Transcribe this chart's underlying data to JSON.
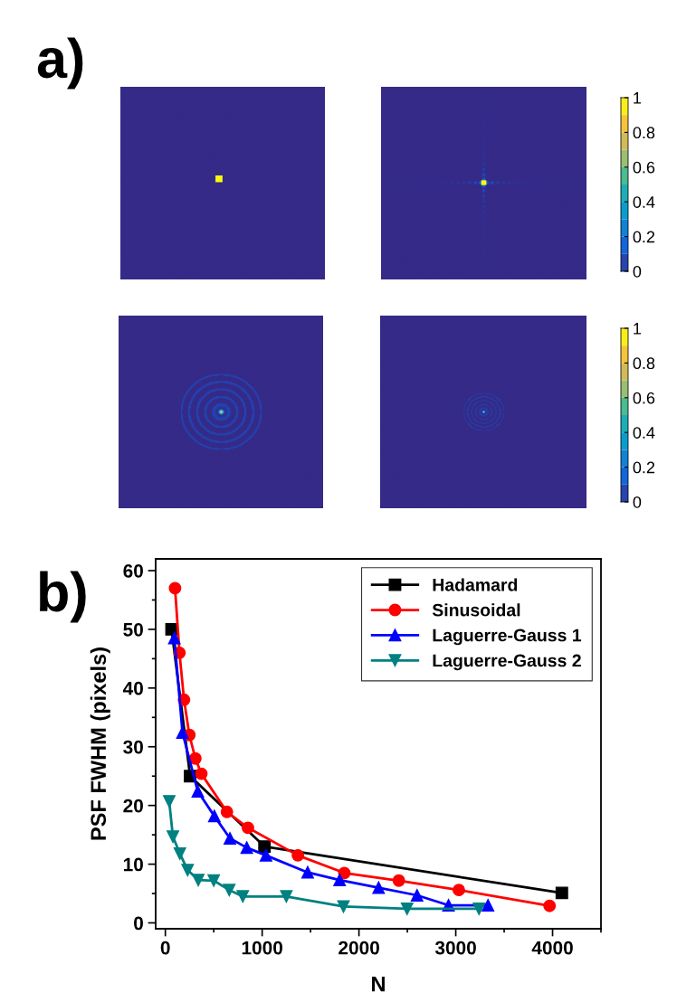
{
  "chart_data": [
    {
      "type": "bar",
      "stacked": true,
      "annotations": [
        "a)"
      ],
      "categories": [
        null
      ],
      "ylim": [
        0,
        1
      ],
      "yticks": [
        0,
        0.2,
        0.4,
        0.6,
        0.8,
        1
      ],
      "series": [
        {
          "color": "#2744af",
          "values": [
            0.1
          ]
        },
        {
          "color": "#1166d9",
          "values": [
            0.1
          ]
        },
        {
          "color": "#1282d5",
          "values": [
            0.1
          ]
        },
        {
          "color": "#0a9ccd",
          "values": [
            0.1
          ]
        },
        {
          "color": "#1caeb6",
          "values": [
            0.1
          ]
        },
        {
          "color": "#4bbb92",
          "values": [
            0.1
          ]
        },
        {
          "color": "#98bf72",
          "values": [
            0.1
          ]
        },
        {
          "color": "#d1bb59",
          "values": [
            0.1
          ]
        },
        {
          "color": "#f5c43b",
          "values": [
            0.1
          ]
        },
        {
          "color": "#f9ee18",
          "values": [
            0.1
          ]
        }
      ]
    },
    {
      "type": "bar",
      "stacked": true,
      "categories": [
        null
      ],
      "ylim": [
        0,
        1
      ],
      "yticks": [
        0,
        0.2,
        0.4,
        0.6,
        0.8,
        1
      ],
      "series": [
        {
          "color": "#2744af",
          "values": [
            0.1
          ]
        },
        {
          "color": "#1166d9",
          "values": [
            0.1
          ]
        },
        {
          "color": "#1282d5",
          "values": [
            0.1
          ]
        },
        {
          "color": "#0a9ccd",
          "values": [
            0.1
          ]
        },
        {
          "color": "#1caeb6",
          "values": [
            0.1
          ]
        },
        {
          "color": "#4bbb92",
          "values": [
            0.1
          ]
        },
        {
          "color": "#98bf72",
          "values": [
            0.1
          ]
        },
        {
          "color": "#d1bb59",
          "values": [
            0.1
          ]
        },
        {
          "color": "#f5c43b",
          "values": [
            0.1
          ]
        },
        {
          "color": "#f9ee18",
          "values": [
            0.1
          ]
        }
      ]
    },
    {
      "type": "line",
      "annotations": [
        "b)"
      ],
      "xlabel": "N",
      "ylabel": "PSF FWHM (pixels)",
      "xlim": [
        -100,
        4500
      ],
      "xticks": [
        0,
        1000,
        2000,
        3000,
        4000
      ],
      "ylim": [
        -1,
        62
      ],
      "yticks": [
        0,
        10,
        20,
        30,
        40,
        50,
        60
      ],
      "grid": false,
      "legend": "top right",
      "line_style": "solid",
      "series": [
        {
          "name": "Hadamard",
          "color": "#000000",
          "marker": "square",
          "x": [
            64,
            256,
            1024,
            4096
          ],
          "values": [
            50,
            25,
            13,
            5.1
          ]
        },
        {
          "name": "Sinusoidal",
          "color": "#ff0000",
          "marker": "circle",
          "x": [
            100,
            146,
            193,
            248,
            310,
            372,
            636,
            853,
            1369,
            1849,
            2412,
            3032,
            3969
          ],
          "values": [
            57,
            46,
            38,
            32,
            28,
            25.4,
            18.9,
            16.2,
            11.5,
            8.5,
            7.2,
            5.6,
            2.9
          ]
        },
        {
          "name": "Laguerre-Gauss 1",
          "color": "#0000ff",
          "marker": "triangle",
          "x": [
            93,
            177,
            335,
            506,
            667,
            841,
            1040,
            1470,
            1800,
            2203,
            2600,
            2925,
            3333
          ],
          "values": [
            48.5,
            32.4,
            22.4,
            18.2,
            14.4,
            12.8,
            11.5,
            8.6,
            7.3,
            6.0,
            4.7,
            3.0,
            3.0
          ]
        },
        {
          "name": "Laguerre-Gauss 2",
          "color": "#008080",
          "marker": "triangle_down",
          "x": [
            40,
            78,
            150,
            230,
            340,
            500,
            660,
            800,
            1250,
            1840,
            2497,
            3240
          ],
          "values": [
            20.7,
            14.7,
            11.8,
            9,
            7.3,
            7.2,
            5.6,
            4.5,
            4.5,
            2.8,
            2.4,
            2.4
          ]
        }
      ]
    }
  ]
}
